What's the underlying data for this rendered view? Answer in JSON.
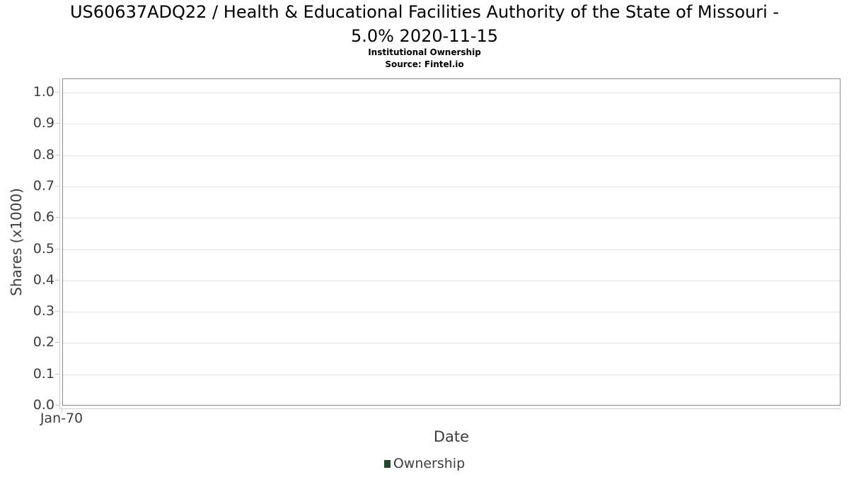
{
  "header": {
    "title_lines": [
      "US60637ADQ22 / Health & Educational Facilities Authority of the State of Missouri -",
      "5.0% 2020-11-15"
    ],
    "subtitle": "Institutional Ownership",
    "source": "Source: Fintel.io"
  },
  "chart_data": {
    "type": "line",
    "title": "US60637ADQ22 / Health & Educational Facilities Authority of the State of Missouri - 5.0% 2020-11-15",
    "subtitle": "Institutional Ownership",
    "source": "Source: Fintel.io",
    "xlabel": "Date",
    "ylabel": "Shares (x1000)",
    "x_tick_labels": [
      "Jan-70"
    ],
    "y_ticks": [
      0.0,
      0.1,
      0.2,
      0.3,
      0.4,
      0.5,
      0.6,
      0.7,
      0.8,
      0.9,
      1.0
    ],
    "ylim": [
      0.0,
      1.045
    ],
    "grid": true,
    "legend_position": "bottom",
    "legend": [
      {
        "label": "Ownership",
        "color": "#1e4a28"
      }
    ],
    "series": [
      {
        "name": "Ownership",
        "x": [],
        "values": []
      }
    ]
  },
  "colors": {
    "background": "#ffffff",
    "title_text": "#000000",
    "axis_text": "#3d3d3d",
    "plot_border": "#898989",
    "gridline": "#e2e2e2",
    "axis_line": "#cccccc",
    "legend_marker": "#1e4a28"
  }
}
